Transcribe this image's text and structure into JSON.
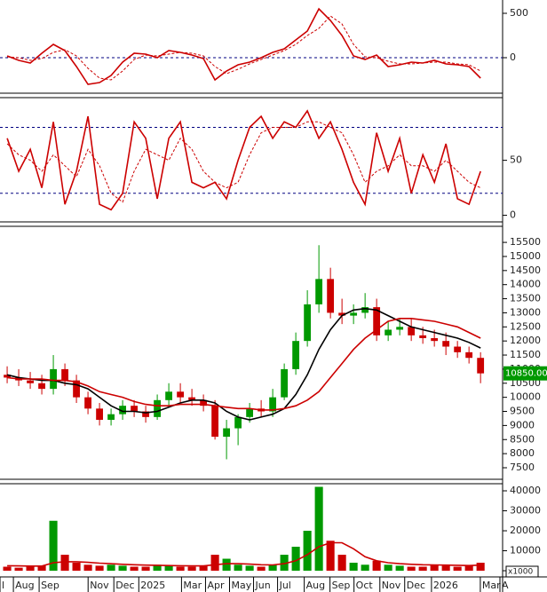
{
  "chart_data": [
    {
      "type": "line",
      "ylim": [
        -400,
        650
      ],
      "yticks": [
        0,
        500
      ],
      "hlines": [
        0
      ],
      "series": [
        {
          "color": "#cc0000",
          "style": "solid",
          "values": [
            20,
            -30,
            -60,
            50,
            150,
            80,
            -100,
            -300,
            -280,
            -200,
            -50,
            50,
            40,
            0,
            80,
            60,
            30,
            -10,
            -250,
            -150,
            -80,
            -50,
            0,
            60,
            100,
            200,
            300,
            550,
            420,
            250,
            20,
            -20,
            30,
            -100,
            -80,
            -50,
            -60,
            -30,
            -70,
            -80,
            -100,
            -230
          ]
        },
        {
          "color": "#cc0000",
          "style": "dashed",
          "values": [
            10,
            0,
            -30,
            -10,
            60,
            90,
            20,
            -120,
            -230,
            -250,
            -150,
            -20,
            30,
            20,
            40,
            60,
            50,
            20,
            -100,
            -180,
            -130,
            -70,
            -20,
            30,
            80,
            150,
            250,
            330,
            470,
            380,
            150,
            10,
            0,
            -40,
            -70,
            -70,
            -60,
            -50,
            -50,
            -70,
            -80,
            -150
          ]
        }
      ]
    },
    {
      "type": "line",
      "ylim": [
        -6,
        107
      ],
      "yticks": [
        0,
        50
      ],
      "hlines": [
        20,
        80
      ],
      "series": [
        {
          "color": "#cc0000",
          "style": "solid",
          "values": [
            70,
            40,
            60,
            25,
            85,
            10,
            40,
            90,
            10,
            5,
            20,
            85,
            70,
            15,
            70,
            85,
            30,
            25,
            30,
            15,
            50,
            80,
            90,
            70,
            85,
            80,
            95,
            70,
            85,
            60,
            30,
            10,
            75,
            40,
            70,
            20,
            55,
            30,
            65,
            15,
            10,
            40
          ]
        },
        {
          "color": "#cc0000",
          "style": "dashed",
          "values": [
            65,
            55,
            50,
            40,
            55,
            45,
            35,
            60,
            45,
            20,
            12,
            40,
            60,
            55,
            50,
            70,
            60,
            40,
            30,
            25,
            30,
            55,
            75,
            80,
            80,
            80,
            85,
            85,
            80,
            75,
            55,
            30,
            40,
            45,
            55,
            45,
            45,
            40,
            50,
            40,
            30,
            25
          ]
        }
      ]
    },
    {
      "type": "candlestick",
      "ylim": [
        7090,
        16070
      ],
      "yticks": [
        7500,
        8000,
        8500,
        9000,
        9500,
        10000,
        10500,
        11000,
        11500,
        12000,
        12500,
        13000,
        13500,
        14000,
        14500,
        15000,
        15500
      ],
      "up_color": "#009900",
      "down_color": "#cc0000",
      "open": [
        10800,
        10700,
        10600,
        10500,
        10300,
        11000,
        10600,
        10000,
        9600,
        9200,
        9400,
        9700,
        9500,
        9300,
        9900,
        10200,
        10000,
        9900,
        9700,
        8600,
        8900,
        9300,
        9600,
        9500,
        10000,
        11000,
        12000,
        13300,
        14200,
        13000,
        12900,
        13000,
        13200,
        12200,
        12400,
        12500,
        12200,
        12100,
        12000,
        11800,
        11600,
        11400
      ],
      "high": [
        11100,
        11000,
        10900,
        10800,
        11500,
        11200,
        10800,
        10200,
        9800,
        9600,
        9900,
        9900,
        9700,
        10100,
        10500,
        10500,
        10300,
        10100,
        9900,
        9200,
        9400,
        9800,
        9900,
        10300,
        11200,
        12300,
        13800,
        15400,
        14600,
        13500,
        13300,
        13700,
        13500,
        12700,
        12800,
        12800,
        12500,
        12400,
        12300,
        12000,
        11800,
        11600
      ],
      "low": [
        10500,
        10400,
        10300,
        10100,
        10100,
        10400,
        9800,
        9400,
        9000,
        9000,
        9200,
        9300,
        9100,
        9200,
        9700,
        9800,
        9700,
        9500,
        8500,
        7800,
        8300,
        9100,
        9300,
        9300,
        9900,
        10800,
        11800,
        13000,
        12800,
        12600,
        12600,
        12800,
        12000,
        12000,
        12200,
        12000,
        11900,
        11800,
        11500,
        11400,
        11200,
        10500
      ],
      "close": [
        10700,
        10600,
        10500,
        10300,
        11000,
        10600,
        10000,
        9600,
        9200,
        9400,
        9700,
        9500,
        9300,
        9900,
        10200,
        10000,
        9900,
        9700,
        8600,
        8900,
        9300,
        9600,
        9500,
        10000,
        11000,
        12000,
        13300,
        14200,
        13000,
        12900,
        13000,
        13200,
        12200,
        12400,
        12500,
        12200,
        12100,
        12000,
        11800,
        11600,
        11400,
        10850
      ],
      "series": [
        {
          "color": "#000000",
          "values": [
            10800,
            10700,
            10650,
            10600,
            10600,
            10500,
            10450,
            10300,
            10000,
            9700,
            9500,
            9500,
            9450,
            9500,
            9650,
            9800,
            9900,
            9900,
            9800,
            9500,
            9300,
            9200,
            9300,
            9400,
            9600,
            10100,
            10800,
            11700,
            12400,
            12900,
            13100,
            13150,
            13100,
            12900,
            12700,
            12500,
            12400,
            12300,
            12200,
            12100,
            11950,
            11750
          ]
        },
        {
          "color": "#cc0000",
          "values": [
            10700,
            10650,
            10650,
            10650,
            10600,
            10600,
            10550,
            10400,
            10200,
            10100,
            10000,
            9850,
            9750,
            9700,
            9700,
            9750,
            9750,
            9750,
            9700,
            9650,
            9600,
            9600,
            9550,
            9550,
            9600,
            9700,
            9900,
            10200,
            10700,
            11200,
            11700,
            12100,
            12400,
            12700,
            12800,
            12800,
            12750,
            12700,
            12600,
            12500,
            12300,
            12100
          ]
        }
      ],
      "last_label": {
        "value": 10850,
        "label": "10850.00",
        "color": "#009900"
      }
    },
    {
      "type": "bar",
      "ylim": [
        -3100,
        43560
      ],
      "yticks": [
        0,
        10000,
        20000,
        30000,
        40000
      ],
      "unit_label": "x1000",
      "values": [
        2000,
        1500,
        2000,
        2500,
        25000,
        8000,
        4000,
        3000,
        2500,
        3000,
        2500,
        2000,
        2000,
        3000,
        2500,
        2000,
        2000,
        2500,
        8000,
        6000,
        3000,
        2500,
        2000,
        3000,
        8000,
        12000,
        20000,
        42000,
        15000,
        8000,
        4000,
        3000,
        5000,
        3000,
        2500,
        2000,
        2000,
        3000,
        2500,
        2000,
        2500,
        4000
      ],
      "series": [
        {
          "color": "#cc0000",
          "values": [
            2500,
            2400,
            2300,
            2300,
            4000,
            4500,
            4500,
            4200,
            3800,
            3500,
            3200,
            3000,
            2800,
            2700,
            2600,
            2500,
            2400,
            2400,
            3000,
            3500,
            3500,
            3300,
            3000,
            2900,
            3500,
            5000,
            8000,
            12000,
            14000,
            14000,
            11000,
            7000,
            5000,
            4000,
            3500,
            3200,
            3000,
            2900,
            2800,
            2700,
            2600,
            2800
          ]
        }
      ],
      "xlim": [
        -0.62,
        42.91
      ],
      "xticks": [
        {
          "value": -0.62,
          "label": "l"
        },
        {
          "value": 0.54,
          "label": "Aug"
        },
        {
          "value": 2.77,
          "label": "Sep"
        },
        {
          "value": 7.01,
          "label": "Nov"
        },
        {
          "value": 9.24,
          "label": "Dec"
        },
        {
          "value": 11.4,
          "label": "2025"
        },
        {
          "value": 15.1,
          "label": "Mar"
        },
        {
          "value": 17.18,
          "label": "Apr"
        },
        {
          "value": 19.26,
          "label": "May"
        },
        {
          "value": 21.34,
          "label": "Jun"
        },
        {
          "value": 23.42,
          "label": "Jul"
        },
        {
          "value": 25.73,
          "label": "Aug"
        },
        {
          "value": 27.96,
          "label": "Sep"
        },
        {
          "value": 30.04,
          "label": "Oct"
        },
        {
          "value": 32.28,
          "label": "Nov"
        },
        {
          "value": 34.43,
          "label": "Dec"
        },
        {
          "value": 36.75,
          "label": "2026"
        },
        {
          "value": 40.98,
          "label": "Mar"
        },
        {
          "value": 42.68,
          "label": "A"
        }
      ]
    }
  ]
}
